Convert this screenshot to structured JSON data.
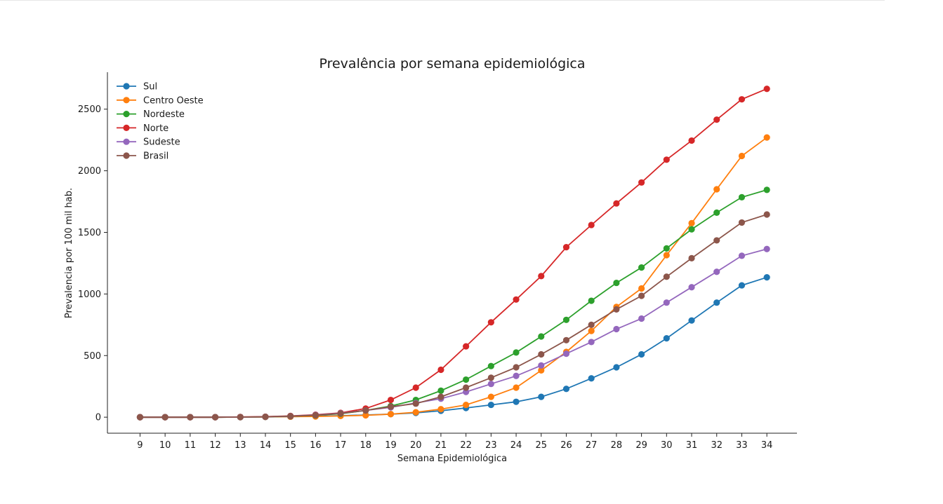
{
  "chart_data": {
    "type": "line",
    "title": "Prevalência por semana epidemiológica",
    "xlabel": "Semana Epidemiológica",
    "ylabel": "Prevalencia por 100 mil hab.",
    "x": [
      9,
      10,
      11,
      12,
      13,
      14,
      15,
      16,
      17,
      18,
      19,
      20,
      21,
      22,
      23,
      24,
      25,
      26,
      27,
      28,
      29,
      30,
      31,
      32,
      33,
      34
    ],
    "xlim": [
      7.7,
      35.2
    ],
    "ylim": [
      -130,
      2800
    ],
    "yticks": [
      0,
      500,
      1000,
      1500,
      2000,
      2500
    ],
    "grid": false,
    "legend_position": "top-left",
    "series": [
      {
        "name": "Sul",
        "color": "#1f77b4",
        "values": [
          0,
          0,
          0,
          0,
          1,
          2,
          5,
          8,
          12,
          18,
          25,
          35,
          52,
          75,
          100,
          125,
          165,
          230,
          315,
          405,
          510,
          640,
          785,
          930,
          1070,
          1135
        ]
      },
      {
        "name": "Centro Oeste",
        "color": "#ff7f0e",
        "values": [
          0,
          0,
          0,
          0,
          1,
          2,
          4,
          6,
          10,
          15,
          25,
          40,
          65,
          100,
          165,
          240,
          380,
          530,
          700,
          895,
          1045,
          1315,
          1575,
          1850,
          2120,
          2270
        ]
      },
      {
        "name": "Nordeste",
        "color": "#2ca02c",
        "values": [
          0,
          0,
          0,
          0,
          1,
          3,
          7,
          15,
          28,
          55,
          90,
          140,
          215,
          305,
          415,
          525,
          655,
          790,
          945,
          1090,
          1215,
          1370,
          1525,
          1660,
          1785,
          1845
        ]
      },
      {
        "name": "Norte",
        "color": "#d62728",
        "values": [
          0,
          0,
          0,
          0,
          2,
          4,
          10,
          20,
          35,
          70,
          140,
          240,
          385,
          575,
          770,
          955,
          1145,
          1380,
          1560,
          1735,
          1905,
          2090,
          2245,
          2415,
          2580,
          2665
        ]
      },
      {
        "name": "Sudeste",
        "color": "#9467bd",
        "values": [
          0,
          0,
          0,
          0,
          1,
          3,
          8,
          18,
          32,
          55,
          80,
          115,
          150,
          205,
          270,
          335,
          420,
          515,
          610,
          715,
          800,
          930,
          1055,
          1180,
          1310,
          1365
        ]
      },
      {
        "name": "Brasil",
        "color": "#8c564b",
        "values": [
          0,
          0,
          0,
          0,
          1,
          3,
          8,
          16,
          30,
          55,
          85,
          110,
          165,
          240,
          320,
          405,
          510,
          625,
          750,
          875,
          985,
          1140,
          1290,
          1435,
          1580,
          1645
        ]
      }
    ]
  }
}
